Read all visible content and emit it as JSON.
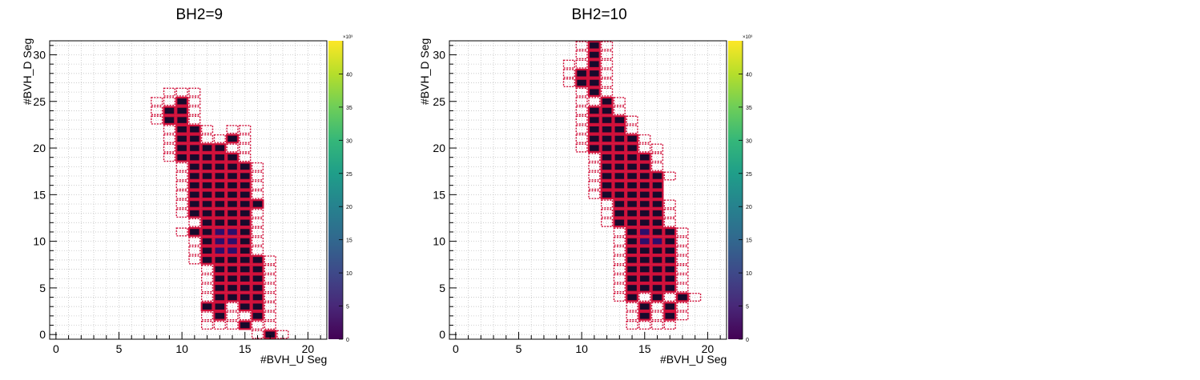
{
  "chart_data": [
    {
      "type": "heatmap",
      "title": "BH2=9",
      "xlabel": "#BVH_U Seg",
      "ylabel": "#BVH_D Seg",
      "xlim": [
        -0.5,
        21.5
      ],
      "ylim": [
        -0.5,
        31.5
      ],
      "x_ticks": [
        "0",
        "5",
        "10",
        "15",
        "20"
      ],
      "y_ticks": [
        "0",
        "5",
        "10",
        "15",
        "20",
        "25",
        "30"
      ],
      "z_range": [
        0,
        45000
      ],
      "z_exponent_label": "×10³",
      "z_ticks": [
        "0",
        "5",
        "10",
        "15",
        "20",
        "25",
        "30",
        "35",
        "40"
      ],
      "colormap": "viridis",
      "filled_cells": [
        [
          17,
          0
        ],
        [
          15,
          1
        ],
        [
          13,
          2
        ],
        [
          16,
          2
        ],
        [
          12,
          3
        ],
        [
          13,
          3
        ],
        [
          15,
          3
        ],
        [
          16,
          3
        ],
        [
          13,
          4
        ],
        [
          14,
          4
        ],
        [
          15,
          4
        ],
        [
          16,
          4
        ],
        [
          13,
          5
        ],
        [
          14,
          5
        ],
        [
          15,
          5
        ],
        [
          16,
          5
        ],
        [
          13,
          6
        ],
        [
          14,
          6
        ],
        [
          15,
          6
        ],
        [
          16,
          6
        ],
        [
          13,
          7
        ],
        [
          14,
          7
        ],
        [
          15,
          7
        ],
        [
          16,
          7
        ],
        [
          12,
          8
        ],
        [
          13,
          8
        ],
        [
          14,
          8
        ],
        [
          15,
          8
        ],
        [
          16,
          8
        ],
        [
          12,
          9
        ],
        [
          13,
          9
        ],
        [
          14,
          9
        ],
        [
          15,
          9
        ],
        [
          12,
          10
        ],
        [
          13,
          10
        ],
        [
          14,
          10
        ],
        [
          15,
          10
        ],
        [
          11,
          11
        ],
        [
          12,
          11
        ],
        [
          13,
          11
        ],
        [
          14,
          11
        ],
        [
          15,
          11
        ],
        [
          12,
          12
        ],
        [
          13,
          12
        ],
        [
          14,
          12
        ],
        [
          15,
          12
        ],
        [
          11,
          13
        ],
        [
          12,
          13
        ],
        [
          13,
          13
        ],
        [
          14,
          13
        ],
        [
          15,
          13
        ],
        [
          11,
          14
        ],
        [
          12,
          14
        ],
        [
          13,
          14
        ],
        [
          14,
          14
        ],
        [
          15,
          14
        ],
        [
          16,
          14
        ],
        [
          11,
          15
        ],
        [
          12,
          15
        ],
        [
          13,
          15
        ],
        [
          14,
          15
        ],
        [
          15,
          15
        ],
        [
          11,
          16
        ],
        [
          12,
          16
        ],
        [
          13,
          16
        ],
        [
          14,
          16
        ],
        [
          15,
          16
        ],
        [
          11,
          17
        ],
        [
          12,
          17
        ],
        [
          13,
          17
        ],
        [
          14,
          17
        ],
        [
          15,
          17
        ],
        [
          11,
          18
        ],
        [
          12,
          18
        ],
        [
          13,
          18
        ],
        [
          14,
          18
        ],
        [
          15,
          18
        ],
        [
          10,
          19
        ],
        [
          11,
          19
        ],
        [
          12,
          19
        ],
        [
          13,
          19
        ],
        [
          14,
          19
        ],
        [
          10,
          20
        ],
        [
          11,
          20
        ],
        [
          12,
          20
        ],
        [
          13,
          20
        ],
        [
          10,
          21
        ],
        [
          11,
          21
        ],
        [
          14,
          21
        ],
        [
          10,
          22
        ],
        [
          11,
          22
        ],
        [
          9,
          23
        ],
        [
          10,
          23
        ],
        [
          9,
          24
        ],
        [
          10,
          24
        ],
        [
          10,
          25
        ]
      ],
      "hot_cells": [
        [
          13,
          9
        ],
        [
          14,
          9
        ],
        [
          13,
          10
        ],
        [
          14,
          10
        ],
        [
          13,
          11
        ],
        [
          14,
          11
        ]
      ],
      "dashed_cells": [
        [
          16,
          0
        ],
        [
          18,
          0
        ],
        [
          12,
          1
        ],
        [
          13,
          1
        ],
        [
          14,
          1
        ],
        [
          16,
          1
        ],
        [
          17,
          1
        ],
        [
          12,
          2
        ],
        [
          14,
          2
        ],
        [
          15,
          2
        ],
        [
          17,
          2
        ],
        [
          14,
          3
        ],
        [
          17,
          3
        ],
        [
          12,
          4
        ],
        [
          17,
          4
        ],
        [
          12,
          5
        ],
        [
          17,
          5
        ],
        [
          12,
          6
        ],
        [
          17,
          6
        ],
        [
          12,
          7
        ],
        [
          17,
          7
        ],
        [
          11,
          8
        ],
        [
          17,
          8
        ],
        [
          11,
          9
        ],
        [
          16,
          9
        ],
        [
          11,
          10
        ],
        [
          16,
          10
        ],
        [
          10,
          11
        ],
        [
          16,
          11
        ],
        [
          11,
          12
        ],
        [
          16,
          12
        ],
        [
          10,
          13
        ],
        [
          16,
          13
        ],
        [
          10,
          14
        ],
        [
          10,
          15
        ],
        [
          16,
          15
        ],
        [
          10,
          16
        ],
        [
          16,
          16
        ],
        [
          10,
          17
        ],
        [
          16,
          17
        ],
        [
          10,
          18
        ],
        [
          16,
          18
        ],
        [
          9,
          19
        ],
        [
          15,
          19
        ],
        [
          9,
          20
        ],
        [
          14,
          20
        ],
        [
          15,
          20
        ],
        [
          9,
          21
        ],
        [
          12,
          21
        ],
        [
          13,
          21
        ],
        [
          15,
          21
        ],
        [
          9,
          22
        ],
        [
          12,
          22
        ],
        [
          14,
          22
        ],
        [
          15,
          22
        ],
        [
          8,
          23
        ],
        [
          11,
          23
        ],
        [
          8,
          24
        ],
        [
          11,
          24
        ],
        [
          8,
          25
        ],
        [
          9,
          25
        ],
        [
          11,
          25
        ],
        [
          9,
          26
        ],
        [
          10,
          26
        ],
        [
          11,
          26
        ]
      ]
    },
    {
      "type": "heatmap",
      "title": "BH2=10",
      "xlabel": "#BVH_U Seg",
      "ylabel": "#BVH_D Seg",
      "xlim": [
        -0.5,
        21.5
      ],
      "ylim": [
        -0.5,
        31.5
      ],
      "x_ticks": [
        "0",
        "5",
        "10",
        "15",
        "20"
      ],
      "y_ticks": [
        "0",
        "5",
        "10",
        "15",
        "20",
        "25",
        "30"
      ],
      "z_range": [
        0,
        45000
      ],
      "z_exponent_label": "×10³",
      "z_ticks": [
        "0",
        "5",
        "10",
        "15",
        "20",
        "25",
        "30",
        "35",
        "40"
      ],
      "colormap": "viridis",
      "filled_cells": [
        [
          15,
          2
        ],
        [
          17,
          2
        ],
        [
          15,
          3
        ],
        [
          17,
          3
        ],
        [
          14,
          4
        ],
        [
          16,
          4
        ],
        [
          18,
          4
        ],
        [
          14,
          5
        ],
        [
          15,
          5
        ],
        [
          16,
          5
        ],
        [
          17,
          5
        ],
        [
          14,
          6
        ],
        [
          15,
          6
        ],
        [
          16,
          6
        ],
        [
          17,
          6
        ],
        [
          14,
          7
        ],
        [
          15,
          7
        ],
        [
          16,
          7
        ],
        [
          17,
          7
        ],
        [
          14,
          8
        ],
        [
          15,
          8
        ],
        [
          16,
          8
        ],
        [
          17,
          8
        ],
        [
          14,
          9
        ],
        [
          15,
          9
        ],
        [
          16,
          9
        ],
        [
          17,
          9
        ],
        [
          14,
          10
        ],
        [
          15,
          10
        ],
        [
          16,
          10
        ],
        [
          17,
          10
        ],
        [
          14,
          11
        ],
        [
          15,
          11
        ],
        [
          16,
          11
        ],
        [
          17,
          11
        ],
        [
          13,
          12
        ],
        [
          14,
          12
        ],
        [
          15,
          12
        ],
        [
          16,
          12
        ],
        [
          13,
          13
        ],
        [
          14,
          13
        ],
        [
          15,
          13
        ],
        [
          16,
          13
        ],
        [
          13,
          14
        ],
        [
          14,
          14
        ],
        [
          15,
          14
        ],
        [
          16,
          14
        ],
        [
          12,
          15
        ],
        [
          13,
          15
        ],
        [
          14,
          15
        ],
        [
          15,
          15
        ],
        [
          16,
          15
        ],
        [
          12,
          16
        ],
        [
          13,
          16
        ],
        [
          14,
          16
        ],
        [
          15,
          16
        ],
        [
          16,
          16
        ],
        [
          12,
          17
        ],
        [
          13,
          17
        ],
        [
          14,
          17
        ],
        [
          15,
          17
        ],
        [
          16,
          17
        ],
        [
          12,
          18
        ],
        [
          13,
          18
        ],
        [
          14,
          18
        ],
        [
          15,
          18
        ],
        [
          12,
          19
        ],
        [
          13,
          19
        ],
        [
          14,
          19
        ],
        [
          15,
          19
        ],
        [
          11,
          20
        ],
        [
          12,
          20
        ],
        [
          13,
          20
        ],
        [
          14,
          20
        ],
        [
          11,
          21
        ],
        [
          12,
          21
        ],
        [
          13,
          21
        ],
        [
          14,
          21
        ],
        [
          11,
          22
        ],
        [
          12,
          22
        ],
        [
          13,
          22
        ],
        [
          11,
          23
        ],
        [
          12,
          23
        ],
        [
          13,
          23
        ],
        [
          11,
          24
        ],
        [
          12,
          24
        ],
        [
          12,
          25
        ],
        [
          11,
          26
        ],
        [
          10,
          27
        ],
        [
          11,
          27
        ],
        [
          10,
          28
        ],
        [
          11,
          28
        ],
        [
          11,
          29
        ],
        [
          11,
          30
        ],
        [
          11,
          31
        ]
      ],
      "hot_cells": [
        [
          15,
          10
        ],
        [
          16,
          10
        ],
        [
          15,
          11
        ]
      ],
      "dashed_cells": [
        [
          14,
          1
        ],
        [
          15,
          1
        ],
        [
          16,
          1
        ],
        [
          17,
          1
        ],
        [
          14,
          2
        ],
        [
          16,
          2
        ],
        [
          18,
          2
        ],
        [
          14,
          3
        ],
        [
          16,
          3
        ],
        [
          18,
          3
        ],
        [
          13,
          4
        ],
        [
          15,
          4
        ],
        [
          17,
          4
        ],
        [
          19,
          4
        ],
        [
          13,
          5
        ],
        [
          18,
          5
        ],
        [
          13,
          6
        ],
        [
          18,
          6
        ],
        [
          13,
          7
        ],
        [
          18,
          7
        ],
        [
          13,
          8
        ],
        [
          18,
          8
        ],
        [
          13,
          9
        ],
        [
          18,
          9
        ],
        [
          13,
          10
        ],
        [
          18,
          10
        ],
        [
          13,
          11
        ],
        [
          18,
          11
        ],
        [
          12,
          12
        ],
        [
          17,
          12
        ],
        [
          12,
          13
        ],
        [
          17,
          13
        ],
        [
          12,
          14
        ],
        [
          17,
          14
        ],
        [
          11,
          15
        ],
        [
          11,
          16
        ],
        [
          11,
          17
        ],
        [
          17,
          17
        ],
        [
          11,
          18
        ],
        [
          16,
          18
        ],
        [
          11,
          19
        ],
        [
          16,
          19
        ],
        [
          10,
          20
        ],
        [
          15,
          20
        ],
        [
          16,
          20
        ],
        [
          10,
          21
        ],
        [
          15,
          21
        ],
        [
          10,
          22
        ],
        [
          14,
          22
        ],
        [
          10,
          23
        ],
        [
          14,
          23
        ],
        [
          10,
          24
        ],
        [
          13,
          24
        ],
        [
          10,
          25
        ],
        [
          11,
          25
        ],
        [
          13,
          25
        ],
        [
          10,
          26
        ],
        [
          12,
          26
        ],
        [
          9,
          27
        ],
        [
          12,
          27
        ],
        [
          9,
          28
        ],
        [
          12,
          28
        ],
        [
          9,
          29
        ],
        [
          10,
          29
        ],
        [
          12,
          29
        ],
        [
          10,
          30
        ],
        [
          12,
          30
        ],
        [
          10,
          31
        ],
        [
          12,
          31
        ]
      ]
    }
  ]
}
